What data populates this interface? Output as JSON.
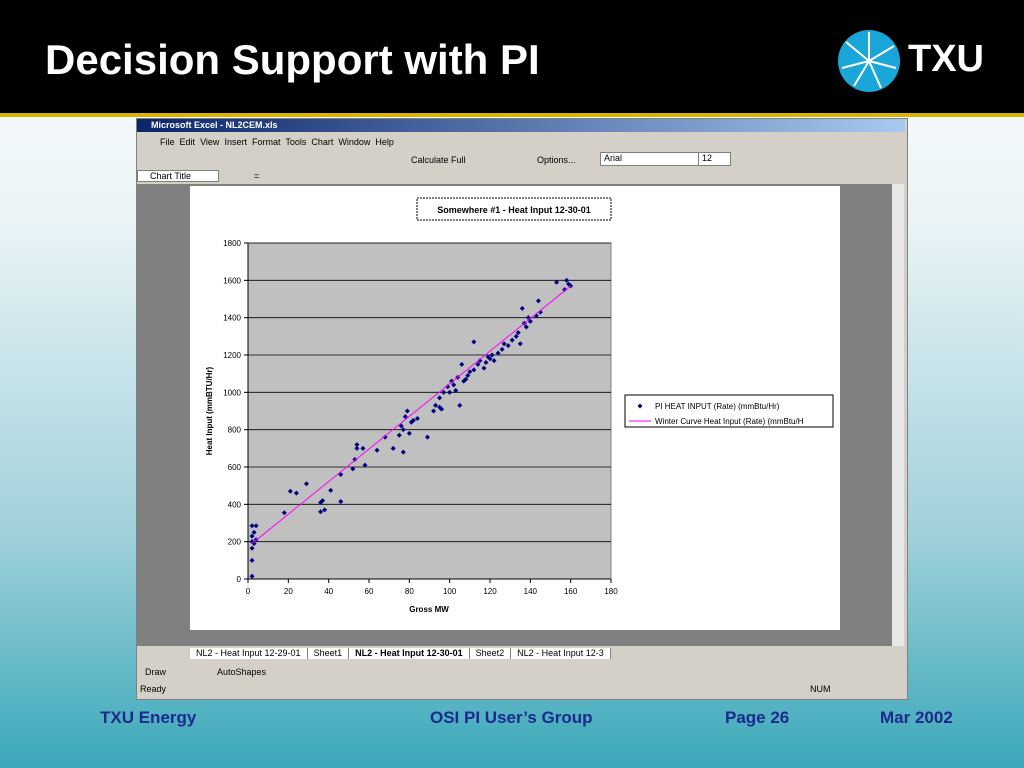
{
  "slide": {
    "title": "Decision Support with PI",
    "logo": "TXU"
  },
  "excel": {
    "window_title": "Microsoft Excel - NL2CEM.xls",
    "menu": [
      "File",
      "Edit",
      "View",
      "Insert",
      "Format",
      "Tools",
      "Chart",
      "Window",
      "Help"
    ],
    "toolbar": {
      "calculate": "Calculate Full",
      "options": "Options...",
      "font": "Arial",
      "size": "12"
    },
    "name_box": "Chart Title",
    "formula_sign": "=",
    "tabs": [
      "NL2 - Heat Input 12-29-01",
      "Sheet1",
      "NL2 - Heat Input 12-30-01",
      "Sheet2",
      "NL2 - Heat Input 12-3"
    ],
    "draw_toolbar": {
      "draw": "Draw",
      "autoshapes": "AutoShapes"
    },
    "status": {
      "ready": "Ready",
      "num": "NUM"
    }
  },
  "chart_data": {
    "type": "scatter",
    "title": "Somewhere #1 - Heat Input 12-30-01",
    "x_label": "Gross MW",
    "y_label": "Heat Input (mmBTU/Hr)",
    "xlim": [
      0,
      180
    ],
    "xticks": [
      0,
      20,
      40,
      60,
      80,
      100,
      120,
      140,
      160,
      180
    ],
    "ylim": [
      0,
      1800
    ],
    "yticks": [
      0,
      200,
      400,
      600,
      800,
      1000,
      1200,
      1400,
      1600,
      1800
    ],
    "grid": true,
    "legend": "right",
    "series": [
      {
        "name": "PI HEAT INPUT (Rate) (mmBtu/Hr)",
        "color": "#000080",
        "mode": "markers",
        "x": [
          2,
          2,
          2,
          2,
          2,
          3,
          2,
          4,
          3,
          4,
          18,
          21,
          24,
          29,
          36,
          37,
          36,
          38,
          41,
          46,
          46,
          52,
          53,
          54,
          54,
          57,
          58,
          64,
          68,
          72,
          75,
          76,
          77,
          77,
          78,
          79,
          80,
          81,
          82,
          84,
          89,
          92,
          93,
          95,
          95,
          97,
          99,
          100,
          101,
          102,
          103,
          104,
          105,
          106,
          107,
          109,
          110,
          112,
          112,
          114,
          115,
          117,
          118,
          120,
          121,
          122,
          124,
          126,
          127,
          129,
          131,
          133,
          134,
          135,
          137,
          138,
          139,
          140,
          143,
          144,
          145,
          153,
          157,
          158,
          159,
          160,
          136,
          96,
          108,
          119
        ],
        "values": [
          15,
          100,
          165,
          200,
          230,
          250,
          285,
          285,
          190,
          210,
          355,
          470,
          460,
          510,
          360,
          420,
          410,
          370,
          475,
          415,
          560,
          590,
          640,
          700,
          720,
          700,
          610,
          690,
          760,
          700,
          770,
          820,
          800,
          680,
          870,
          900,
          780,
          840,
          850,
          860,
          760,
          900,
          930,
          920,
          970,
          1000,
          1030,
          1000,
          1060,
          1040,
          1010,
          1080,
          930,
          1150,
          1060,
          1090,
          1110,
          1120,
          1270,
          1150,
          1170,
          1130,
          1160,
          1180,
          1200,
          1170,
          1210,
          1230,
          1260,
          1250,
          1280,
          1300,
          1320,
          1260,
          1370,
          1350,
          1400,
          1380,
          1410,
          1490,
          1430,
          1590,
          1550,
          1600,
          1580,
          1570,
          1450,
          910,
          1070,
          1190
        ]
      },
      {
        "name": "Winter Curve Heat Input (Rate) (mmBtu/H",
        "color": "#ff00ff",
        "mode": "line",
        "x": [
          2,
          160
        ],
        "values": [
          190,
          1570
        ]
      }
    ]
  },
  "footer": {
    "left": "TXU Energy",
    "center": "OSI PI User’s Group",
    "page": "Page 26",
    "date": "Mar 2002"
  }
}
